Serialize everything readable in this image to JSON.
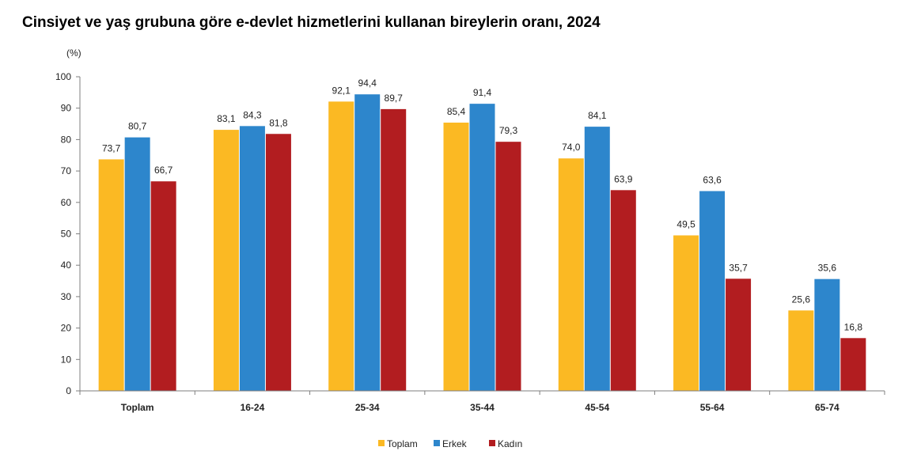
{
  "title": "Cinsiyet ve yaş grubuna göre e-devlet hizmetlerini kullanan bireylerin oranı, 2024",
  "chart_data": {
    "type": "bar",
    "title": "Cinsiyet ve yaş grubuna göre e-devlet hizmetlerini kullanan bireylerin oranı, 2024",
    "ylabel": "(%)",
    "xlabel": "",
    "ylim": [
      0,
      100
    ],
    "yticks": [
      "0",
      "10",
      "20",
      "30",
      "40",
      "50",
      "60",
      "70",
      "80",
      "90",
      "100"
    ],
    "grid": false,
    "legend_position": "bottom",
    "categories": [
      "Toplam",
      "16-24",
      "25-34",
      "35-44",
      "45-54",
      "55-64",
      "65-74"
    ],
    "series": [
      {
        "name": "Toplam",
        "color": "#FBB923",
        "values": [
          73.7,
          83.1,
          92.1,
          85.4,
          74.0,
          49.5,
          25.6
        ],
        "labels": [
          "73,7",
          "83,1",
          "92,1",
          "85,4",
          "74,0",
          "49,5",
          "25,6"
        ]
      },
      {
        "name": "Erkek",
        "color": "#2D86CC",
        "values": [
          80.7,
          84.3,
          94.4,
          91.4,
          84.1,
          63.6,
          35.6
        ],
        "labels": [
          "80,7",
          "84,3",
          "94,4",
          "91,4",
          "84,1",
          "63,6",
          "35,6"
        ]
      },
      {
        "name": "Kadın",
        "color": "#B21D20",
        "values": [
          66.7,
          81.8,
          89.7,
          79.3,
          63.9,
          35.7,
          16.8
        ],
        "labels": [
          "66,7",
          "81,8",
          "89,7",
          "79,3",
          "63,9",
          "35,7",
          "16,8"
        ]
      }
    ]
  }
}
